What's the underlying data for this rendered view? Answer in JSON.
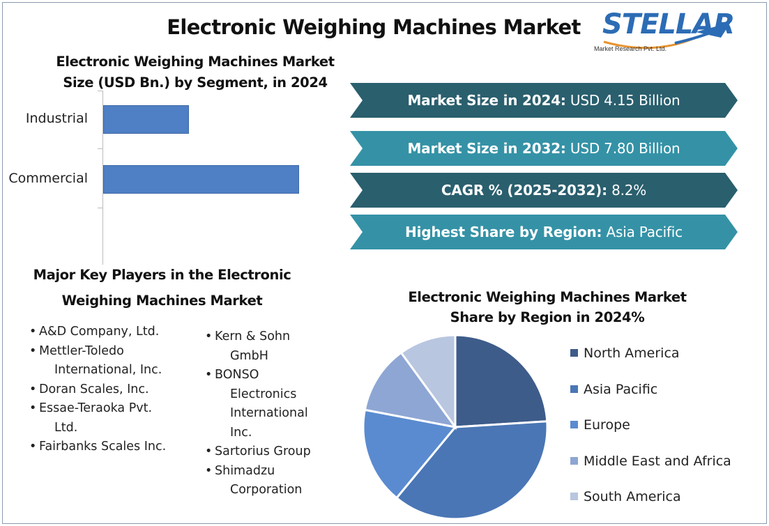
{
  "title": "Electronic Weighing Machines Market",
  "logo": {
    "word": "STELLAR",
    "subtitle": "Market Research Pvt. Ltd."
  },
  "kpis": [
    {
      "label": "Market Size in 2024:",
      "value": "USD 4.15 Billion",
      "color": "#2a5f6e"
    },
    {
      "label": "Market Size in 2032:",
      "value": "USD 7.80 Billion",
      "color": "#3592a6"
    },
    {
      "label": "CAGR % (2025-2032):",
      "value": "8.2%",
      "color": "#2a5f6e"
    },
    {
      "label": "Highest Share by Region:",
      "value": "Asia Pacific",
      "color": "#3592a6"
    }
  ],
  "players": {
    "title_line1": "Major Key Players in the Electronic",
    "title_line2": "Weighing Machines Market",
    "col1": [
      [
        "A&D Company, Ltd."
      ],
      [
        "Mettler-Toledo",
        "International, Inc."
      ],
      [
        "Doran Scales, Inc."
      ],
      [
        "Essae-Teraoka Pvt.",
        "Ltd."
      ],
      [
        "Fairbanks Scales Inc."
      ]
    ],
    "col2": [
      [
        "Kern & Sohn",
        "GmbH"
      ],
      [
        "BONSO",
        "Electronics",
        "International",
        "Inc."
      ],
      [
        "Sartorius Group"
      ],
      [
        "Shimadzu",
        "Corporation"
      ]
    ]
  },
  "chart_data": [
    {
      "type": "bar",
      "orientation": "horizontal",
      "title_line1": "Electronic Weighing Machines Market",
      "title_line2": "Size (USD Bn.) by Segment, in 2024",
      "categories": [
        "Industrial",
        "Commercial"
      ],
      "values": [
        1.2,
        2.75
      ],
      "xlim": [
        0,
        3.5
      ],
      "bar_color": "#4f7fc4",
      "grid": false
    },
    {
      "type": "pie",
      "title_line1": "Electronic Weighing Machines Market",
      "title_line2": "Share by Region in 2024%",
      "labels": [
        "North America",
        "Asia Pacific",
        "Europe",
        "Middle East and Africa",
        "South America"
      ],
      "values": [
        24,
        37,
        17,
        12,
        10
      ],
      "colors": [
        "#3e5c8a",
        "#4a76b5",
        "#5a8bd0",
        "#8ea6d4",
        "#b8c6e0"
      ],
      "legend_position": "right"
    }
  ]
}
